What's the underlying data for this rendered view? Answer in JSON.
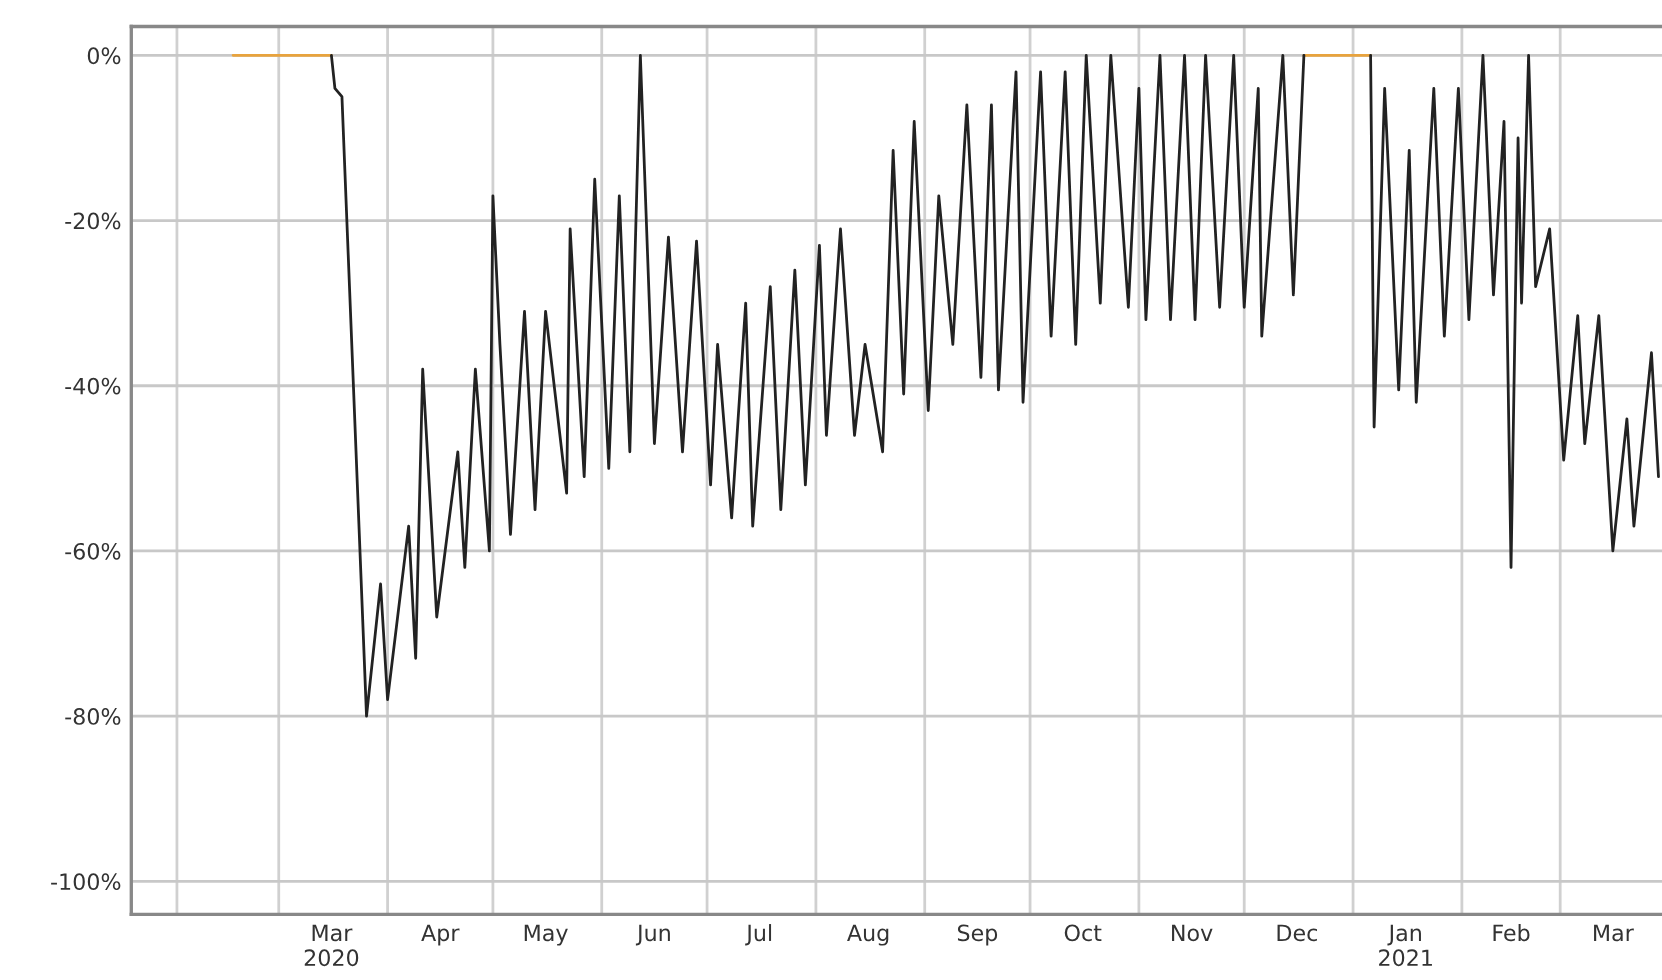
{
  "chart_data": {
    "type": "line",
    "xlim": [
      "2020-01-19",
      "2021-03-30"
    ],
    "ylim": [
      -104,
      3.5
    ],
    "yticks": [
      {
        "value": 0,
        "label": "0%"
      },
      {
        "value": -20,
        "label": "-20%"
      },
      {
        "value": -40,
        "label": "-40%"
      },
      {
        "value": -60,
        "label": "-60%"
      },
      {
        "value": -80,
        "label": "-80%"
      },
      {
        "value": -100,
        "label": "-100%"
      }
    ],
    "xticks": [
      {
        "value": "2020-02-01",
        "label": null
      },
      {
        "value": "2020-03-01",
        "label": null
      },
      {
        "value": "2020-04-01",
        "label": null
      },
      {
        "value": "2020-05-01",
        "label": null
      },
      {
        "value": "2020-06-01",
        "label": null
      },
      {
        "value": "2020-07-01",
        "label": null
      },
      {
        "value": "2020-08-01",
        "label": null
      },
      {
        "value": "2020-09-01",
        "label": null
      },
      {
        "value": "2020-10-01",
        "label": null
      },
      {
        "value": "2020-11-01",
        "label": null
      },
      {
        "value": "2020-12-01",
        "label": null
      },
      {
        "value": "2021-01-01",
        "label": null
      },
      {
        "value": "2021-02-01",
        "label": null
      },
      {
        "value": "2021-03-01",
        "label": null
      },
      {
        "value": "2020-03-16",
        "label": "Mar\n2020"
      },
      {
        "value": "2020-04-16",
        "label": "Apr"
      },
      {
        "value": "2020-05-16",
        "label": "May"
      },
      {
        "value": "2020-06-16",
        "label": "Jun"
      },
      {
        "value": "2020-07-16",
        "label": "Jul"
      },
      {
        "value": "2020-08-16",
        "label": "Aug"
      },
      {
        "value": "2020-09-16",
        "label": "Sep"
      },
      {
        "value": "2020-10-16",
        "label": "Oct"
      },
      {
        "value": "2020-11-16",
        "label": "Nov"
      },
      {
        "value": "2020-12-16",
        "label": "Dec"
      },
      {
        "value": "2021-01-16",
        "label": "Jan\n2021"
      },
      {
        "value": "2021-02-15",
        "label": "Feb"
      },
      {
        "value": "2021-03-16",
        "label": "Mar"
      }
    ],
    "grid": true,
    "series": [
      {
        "color": "#e8a33d",
        "x": [
          "2020-02-17",
          "2020-03-16",
          "2020-12-17",
          "2020-12-18",
          "2021-01-06"
        ],
        "values": [
          0,
          0,
          null,
          0,
          0
        ]
      },
      {
        "color": "#222222",
        "x": [
          "2020-03-16",
          "2020-03-17",
          "2020-03-19",
          "2020-03-26",
          "2020-03-30",
          "2020-04-01",
          "2020-04-07",
          "2020-04-09",
          "2020-04-11",
          "2020-04-15",
          "2020-04-21",
          "2020-04-23",
          "2020-04-26",
          "2020-04-30",
          "2020-05-01",
          "2020-05-03",
          "2020-05-06",
          "2020-05-10",
          "2020-05-13",
          "2020-05-16",
          "2020-05-22",
          "2020-05-23",
          "2020-05-27",
          "2020-05-30",
          "2020-06-03",
          "2020-06-06",
          "2020-06-09",
          "2020-06-12",
          "2020-06-16",
          "2020-06-20",
          "2020-06-24",
          "2020-06-28",
          "2020-07-02",
          "2020-07-04",
          "2020-07-08",
          "2020-07-12",
          "2020-07-14",
          "2020-07-19",
          "2020-07-22",
          "2020-07-26",
          "2020-07-29",
          "2020-08-02",
          "2020-08-04",
          "2020-08-08",
          "2020-08-12",
          "2020-08-15",
          "2020-08-20",
          "2020-08-23",
          "2020-08-26",
          "2020-08-29",
          "2020-09-02",
          "2020-09-05",
          "2020-09-09",
          "2020-09-13",
          "2020-09-17",
          "2020-09-20",
          "2020-09-22",
          "2020-09-27",
          "2020-09-29",
          "2020-10-04",
          "2020-10-07",
          "2020-10-11",
          "2020-10-14",
          "2020-10-17",
          "2020-10-21",
          "2020-10-24",
          "2020-10-29",
          "2020-11-01",
          "2020-11-03",
          "2020-11-07",
          "2020-11-10",
          "2020-11-14",
          "2020-11-17",
          "2020-11-20",
          "2020-11-24",
          "2020-11-28",
          "2020-12-01",
          "2020-12-05",
          "2020-12-06",
          "2020-12-12",
          "2020-12-15",
          "2020-12-18",
          "2020-12-28",
          "2021-01-06",
          "2021-01-07",
          "2021-01-10",
          "2021-01-14",
          "2021-01-17",
          "2021-01-19",
          "2021-01-24",
          "2021-01-27",
          "2021-01-31",
          "2021-02-03",
          "2021-02-07",
          "2021-02-10",
          "2021-02-13",
          "2021-02-15",
          "2021-02-17",
          "2021-02-18",
          "2021-02-20",
          "2021-02-22",
          "2021-02-26",
          "2021-03-02",
          "2021-03-06",
          "2021-03-08",
          "2021-03-12",
          "2021-03-16",
          "2021-03-20",
          "2021-03-22",
          "2021-03-27",
          "2021-03-29"
        ],
        "values": [
          0,
          -4,
          -5,
          -80,
          -64,
          -78,
          -57,
          -73,
          -38,
          -68,
          -48,
          -62,
          -38,
          -60,
          -17,
          -35,
          -58,
          -31,
          -55,
          -31,
          -53,
          -21,
          -51,
          -15,
          -50,
          -17,
          -48,
          0,
          -47,
          -22,
          -48,
          -22.5,
          -52,
          -35,
          -56,
          -30,
          -57,
          -28,
          -55,
          -26,
          -52,
          -23,
          -46,
          -21,
          -46,
          -35,
          -48,
          -11.5,
          -41,
          -8,
          -43,
          -17,
          -35,
          -6,
          -39,
          -6,
          -40.5,
          -2,
          -42,
          -2,
          -34,
          -2,
          -35,
          0,
          -30,
          0,
          -30.5,
          -4,
          -32,
          0,
          -32,
          0,
          -32,
          0,
          -30.5,
          0,
          -30.5,
          -4,
          -34,
          0,
          -29,
          0,
          null,
          0,
          -45,
          -4,
          -40.5,
          -11.5,
          -42,
          -4,
          -34,
          -4,
          -32,
          0,
          -29,
          -8,
          -62,
          -10,
          -30,
          0,
          -28,
          -21,
          -49,
          -31.5,
          -47,
          -31.5,
          -60,
          -44,
          -57,
          -36,
          -51
        ]
      }
    ]
  }
}
